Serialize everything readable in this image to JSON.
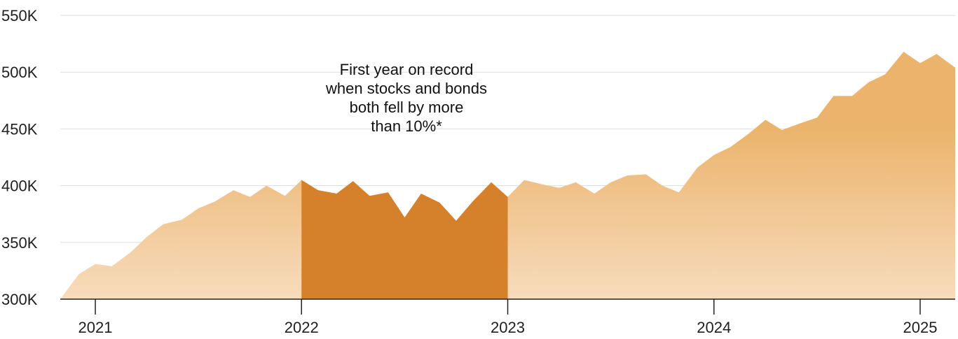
{
  "colors": {
    "area_top": "#ebb36b",
    "area_bottom": "#f7dcbd",
    "highlight": "#d5802a",
    "grid": "#dddddd",
    "axis": "#222222"
  },
  "chart_data": {
    "type": "area",
    "title": "",
    "xlabel": "",
    "ylabel": "",
    "ylim": [
      300000,
      550000
    ],
    "xlim": [
      2020.83,
      2025.17
    ],
    "yticks": [
      {
        "value": 300000,
        "label": "300K"
      },
      {
        "value": 350000,
        "label": "350K"
      },
      {
        "value": 400000,
        "label": "400K"
      },
      {
        "value": 450000,
        "label": "450K"
      },
      {
        "value": 500000,
        "label": "500K"
      },
      {
        "value": 550000,
        "label": "550K"
      }
    ],
    "xticks": [
      {
        "value": 2021,
        "label": "2021"
      },
      {
        "value": 2022,
        "label": "2022"
      },
      {
        "value": 2023,
        "label": "2023"
      },
      {
        "value": 2024,
        "label": "2024"
      },
      {
        "value": 2025,
        "label": "2025"
      }
    ],
    "grid": true,
    "highlight_range": [
      2022,
      2023
    ],
    "annotation": {
      "lines": [
        "First year on record",
        "when stocks and bonds",
        "both fell by more",
        "than 10%*"
      ]
    },
    "x": [
      2020.83,
      2020.92,
      2021.0,
      2021.08,
      2021.17,
      2021.25,
      2021.33,
      2021.42,
      2021.5,
      2021.58,
      2021.67,
      2021.75,
      2021.83,
      2021.92,
      2022.0,
      2022.08,
      2022.17,
      2022.25,
      2022.33,
      2022.42,
      2022.5,
      2022.58,
      2022.67,
      2022.75,
      2022.83,
      2022.92,
      2023.0,
      2023.08,
      2023.17,
      2023.25,
      2023.33,
      2023.42,
      2023.5,
      2023.58,
      2023.67,
      2023.75,
      2023.83,
      2023.92,
      2024.0,
      2024.08,
      2024.17,
      2024.25,
      2024.33,
      2024.42,
      2024.5,
      2024.58,
      2024.67,
      2024.75,
      2024.83,
      2024.92,
      2025.0,
      2025.08,
      2025.17
    ],
    "values": [
      300000,
      322000,
      331000,
      329000,
      341000,
      355000,
      366000,
      370000,
      380000,
      386000,
      396000,
      390000,
      400000,
      391000,
      405000,
      396000,
      393000,
      404000,
      391000,
      394000,
      372000,
      393000,
      385000,
      369000,
      386000,
      403000,
      390000,
      405000,
      401000,
      398000,
      403000,
      393000,
      403000,
      409000,
      410000,
      400000,
      394000,
      416000,
      427000,
      434000,
      446000,
      458000,
      449000,
      455000,
      460000,
      479000,
      479000,
      491000,
      498000,
      518000,
      508000,
      516000,
      504000
    ]
  }
}
